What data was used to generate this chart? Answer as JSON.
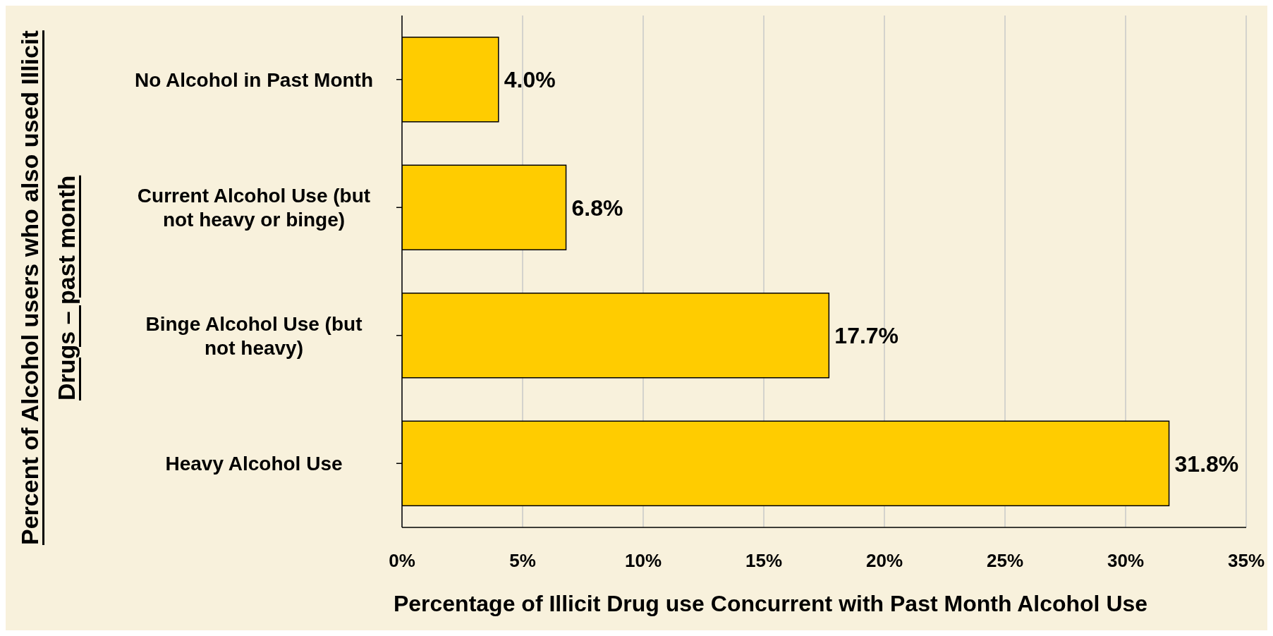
{
  "chart_data": {
    "type": "bar",
    "orientation": "horizontal",
    "xlabel": "Percentage of Illicit Drug use Concurrent with Past Month Alcohol Use",
    "ylabel": "Percent of Alcohol users who also used Illicit Drugs – past  month",
    "categories": [
      "No Alcohol in Past Month",
      "Current Alcohol Use (but not heavy or binge)",
      "Binge Alcohol Use (but not heavy)",
      "Heavy Alcohol Use"
    ],
    "values": [
      4.0,
      6.8,
      17.7,
      31.8
    ],
    "color": "#ffcc00",
    "value_labels": [
      "4.0%",
      "6.8%",
      "17.7%",
      "31.8%"
    ],
    "xlim": [
      0,
      35
    ],
    "xticks": [
      {
        "value": 0,
        "label": "0%"
      },
      {
        "value": 5,
        "label": "5%"
      },
      {
        "value": 10,
        "label": "10%"
      },
      {
        "value": 15,
        "label": "15%"
      },
      {
        "value": 20,
        "label": "20%"
      },
      {
        "value": 25,
        "label": "25%"
      },
      {
        "value": 30,
        "label": "30%"
      },
      {
        "value": 35,
        "label": "35%"
      }
    ],
    "grid": "x",
    "legend": false
  }
}
